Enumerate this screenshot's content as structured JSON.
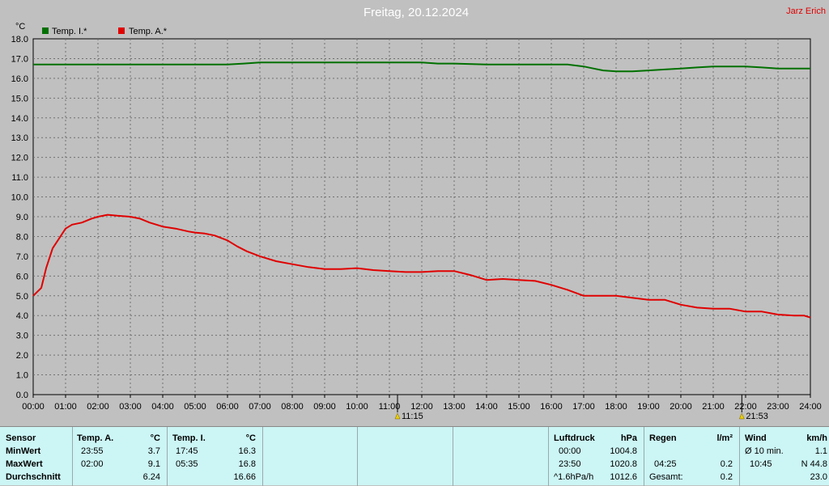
{
  "header": {
    "title": "Freitag, 20.12.2024",
    "author": "Jarz Erich"
  },
  "chart_data": {
    "type": "line",
    "ylabel": "°C",
    "ylim": [
      0,
      18
    ],
    "xlim": [
      0,
      24
    ],
    "y_ticks": [
      "0.0",
      "1.0",
      "2.0",
      "3.0",
      "4.0",
      "5.0",
      "6.0",
      "7.0",
      "8.0",
      "9.0",
      "10.0",
      "11.0",
      "12.0",
      "13.0",
      "14.0",
      "15.0",
      "16.0",
      "17.0",
      "18.0"
    ],
    "x_ticks": [
      "00:00",
      "01:00",
      "02:00",
      "03:00",
      "04:00",
      "05:00",
      "06:00",
      "07:00",
      "08:00",
      "09:00",
      "10:00",
      "11:00",
      "12:00",
      "13:00",
      "14:00",
      "15:00",
      "16:00",
      "17:00",
      "18:00",
      "19:00",
      "20:00",
      "21:00",
      "22:00",
      "23:00",
      "24:00"
    ],
    "grid": true,
    "legend": "top-left",
    "series": [
      {
        "name": "Temp. I.*",
        "color": "#007000",
        "x": [
          0,
          1,
          2,
          3,
          4,
          5,
          6,
          6.5,
          7,
          7.5,
          8,
          9,
          10,
          11,
          12,
          12.5,
          13,
          14,
          15,
          16,
          16.5,
          17,
          17.3,
          17.6,
          18,
          18.5,
          19,
          19.5,
          20,
          20.5,
          21,
          21.5,
          22,
          22.5,
          23,
          23.5,
          24
        ],
        "y": [
          16.7,
          16.7,
          16.7,
          16.7,
          16.7,
          16.7,
          16.7,
          16.75,
          16.8,
          16.8,
          16.8,
          16.8,
          16.8,
          16.8,
          16.8,
          16.75,
          16.75,
          16.7,
          16.7,
          16.7,
          16.7,
          16.6,
          16.5,
          16.4,
          16.35,
          16.35,
          16.4,
          16.45,
          16.5,
          16.55,
          16.6,
          16.6,
          16.6,
          16.55,
          16.5,
          16.5,
          16.5
        ]
      },
      {
        "name": "Temp. A.*",
        "color": "#e00000",
        "x": [
          0,
          0.25,
          0.4,
          0.6,
          0.8,
          1,
          1.2,
          1.5,
          1.8,
          2,
          2.3,
          2.6,
          3,
          3.3,
          3.6,
          4,
          4.4,
          4.8,
          5,
          5.3,
          5.6,
          6,
          6.3,
          6.6,
          7,
          7.5,
          8,
          8.5,
          9,
          9.5,
          10,
          10.5,
          11,
          11.5,
          12,
          12.5,
          13,
          13.5,
          14,
          14.5,
          15,
          15.5,
          16,
          16.5,
          17,
          17.5,
          18,
          18.5,
          19,
          19.5,
          20,
          20.5,
          21,
          21.5,
          22,
          22.5,
          23,
          23.5,
          23.8,
          24
        ],
        "y": [
          5.0,
          5.4,
          6.4,
          7.4,
          7.9,
          8.4,
          8.6,
          8.7,
          8.9,
          9.0,
          9.1,
          9.05,
          9.0,
          8.9,
          8.7,
          8.5,
          8.4,
          8.25,
          8.2,
          8.15,
          8.05,
          7.8,
          7.5,
          7.25,
          7.0,
          6.75,
          6.6,
          6.45,
          6.35,
          6.35,
          6.4,
          6.3,
          6.25,
          6.2,
          6.2,
          6.25,
          6.25,
          6.05,
          5.8,
          5.85,
          5.8,
          5.75,
          5.55,
          5.3,
          5.0,
          5.0,
          5.0,
          4.9,
          4.8,
          4.8,
          4.55,
          4.4,
          4.35,
          4.35,
          4.2,
          4.2,
          4.05,
          4.0,
          4.0,
          3.9
        ]
      }
    ],
    "annotations": [
      {
        "x": 11.25,
        "label": "11:15"
      },
      {
        "x": 21.883,
        "label": "21:53"
      }
    ]
  },
  "stats": {
    "sensor": {
      "header": "Sensor",
      "rows": [
        "MinWert",
        "MaxWert",
        "Durchschnitt"
      ]
    },
    "temp_a": {
      "header": "Temp. A.",
      "unit": "°C",
      "min_time": "23:55",
      "min_val": "3.7",
      "max_time": "02:00",
      "max_val": "9.1",
      "avg": "6.24"
    },
    "temp_i": {
      "header": "Temp. I.",
      "unit": "°C",
      "min_time": "17:45",
      "min_val": "16.3",
      "max_time": "05:35",
      "max_val": "16.8",
      "avg": "16.66"
    },
    "pressure": {
      "header": "Luftdruck",
      "unit": "hPa",
      "min_time": "00:00",
      "min_val": "1004.8",
      "max_time": "23:50",
      "max_val": "1020.8",
      "trend_label": "^1.6hPa/h",
      "avg": "1012.6"
    },
    "rain": {
      "header": "Regen",
      "unit": "l/m²",
      "max_time": "04:25",
      "max_val": "0.2",
      "total_label": "Gesamt:",
      "total": "0.2"
    },
    "wind": {
      "header": "Wind",
      "unit": "km/h",
      "avg_label": "Ø 10 min.",
      "avg_val": "1.1",
      "max_time": "10:45",
      "max_val": "N 44.8",
      "last_val": "23.0"
    }
  }
}
